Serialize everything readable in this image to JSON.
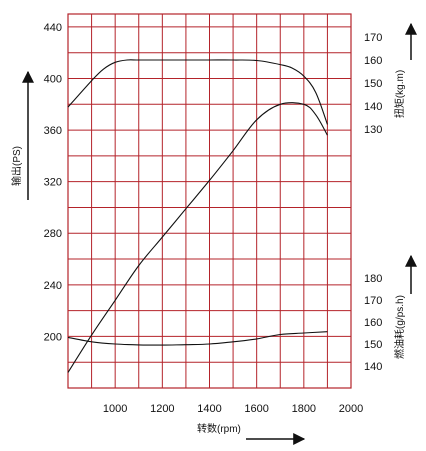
{
  "chart_data": {
    "type": "line",
    "x_axis": {
      "label": "转数(rpm)",
      "range": [
        800,
        2000
      ],
      "ticks": [
        1000,
        1200,
        1400,
        1600,
        1800,
        2000
      ],
      "grid_step": 100
    },
    "left_axis": {
      "label": "输出(PS)",
      "range": [
        160,
        450
      ],
      "ticks": [
        200,
        240,
        280,
        320,
        360,
        400,
        440
      ],
      "grid_step": 20
    },
    "right_axes": [
      {
        "id": "torque",
        "label": "扭矩(kg.m)",
        "ticks": [
          130,
          140,
          150,
          160,
          170
        ]
      },
      {
        "id": "fuel",
        "label": "燃油耗(g/ps.h)",
        "ticks": [
          140,
          150,
          160,
          170,
          180
        ]
      }
    ],
    "grid": true,
    "series": [
      {
        "id": "power",
        "axis": "left",
        "x": [
          800,
          900,
          1000,
          1100,
          1200,
          1300,
          1400,
          1500,
          1600,
          1700,
          1800,
          1850,
          1900
        ],
        "values": [
          172,
          201,
          228,
          255,
          277,
          299,
          321,
          344,
          368,
          380,
          380,
          372,
          356
        ]
      },
      {
        "id": "torque",
        "axis": "torque",
        "x": [
          800,
          900,
          950,
          1000,
          1050,
          1100,
          1200,
          1300,
          1400,
          1500,
          1600,
          1700,
          1750,
          1800,
          1850,
          1900
        ],
        "values": [
          139.5,
          151,
          156,
          159,
          160,
          160,
          160,
          160,
          160,
          160,
          159.8,
          158,
          156.5,
          153,
          146,
          132
        ]
      },
      {
        "id": "fuel",
        "axis": "fuel",
        "x": [
          800,
          900,
          1000,
          1100,
          1200,
          1300,
          1400,
          1500,
          1600,
          1700,
          1800,
          1900
        ],
        "values": [
          153,
          151,
          150,
          149.6,
          149.5,
          149.7,
          150,
          151,
          152.3,
          154.3,
          155,
          155.6
        ]
      }
    ]
  }
}
